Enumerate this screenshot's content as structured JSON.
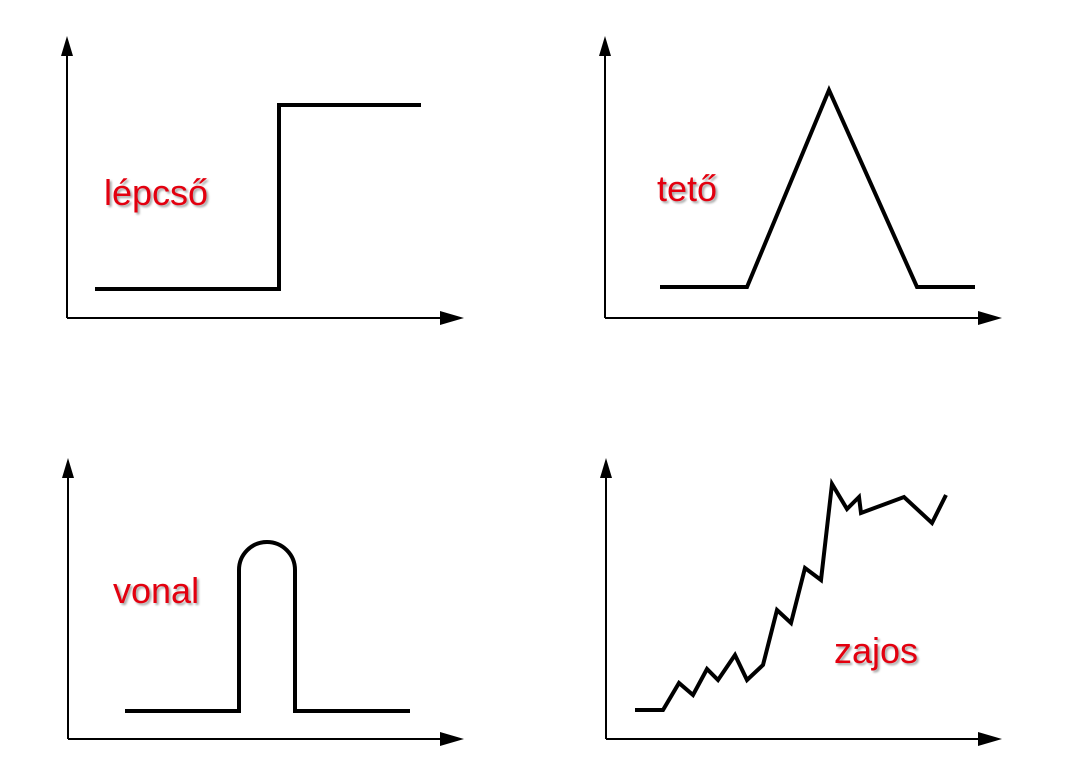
{
  "panels": [
    {
      "id": "step",
      "label": "lépcső"
    },
    {
      "id": "roof",
      "label": "tető"
    },
    {
      "id": "line",
      "label": "vonal"
    },
    {
      "id": "noisy",
      "label": "zajos"
    }
  ],
  "colors": {
    "label": "#e3000f",
    "stroke": "#000000",
    "background": "#ffffff"
  }
}
